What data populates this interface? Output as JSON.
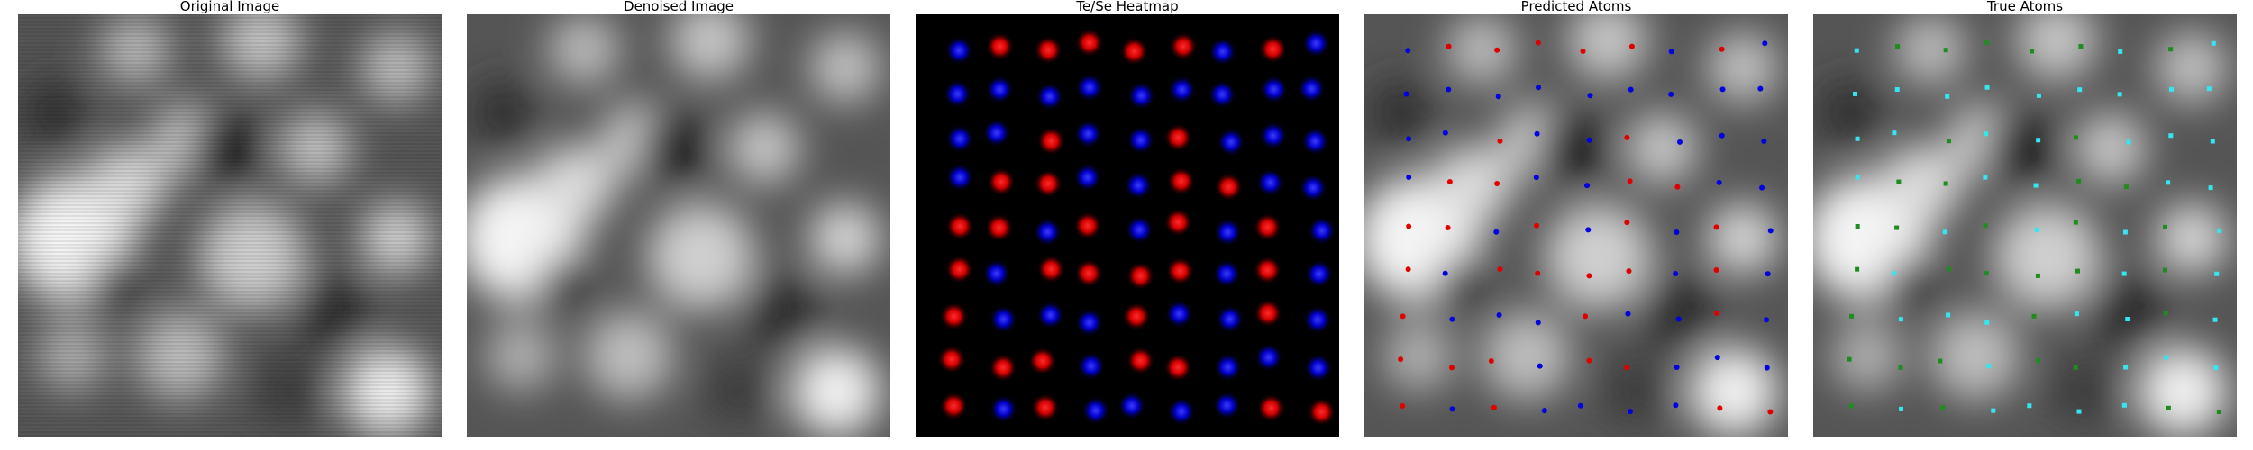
{
  "panels": [
    {
      "title": "Original Image"
    },
    {
      "title": "Denoised Image"
    },
    {
      "title": "Te/Se Heatmap"
    },
    {
      "title": "Predicted Atoms"
    },
    {
      "title": "True Atoms"
    }
  ],
  "colors": {
    "background": "#ffffff",
    "heatmap_bg": "#000000",
    "te": "#ff1a1a",
    "se": "#1f1fff",
    "pred_red": "#e00000",
    "pred_blue": "#0000e0",
    "true_green": "#1e8c1e",
    "true_cyan": "#33e6f0"
  },
  "atom_grid": {
    "columns": 9,
    "rows": 9,
    "labels": [
      [
        "se",
        "te",
        "te",
        "te",
        "te",
        "te",
        "se",
        "te",
        "se"
      ],
      [
        "se",
        "se",
        "se",
        "se",
        "se",
        "se",
        "se",
        "se",
        "se"
      ],
      [
        "se",
        "se",
        "te",
        "se",
        "se",
        "te",
        "se",
        "se",
        "se"
      ],
      [
        "se",
        "te",
        "te",
        "se",
        "se",
        "te",
        "te",
        "se",
        "se"
      ],
      [
        "te",
        "te",
        "se",
        "te",
        "se",
        "te",
        "se",
        "te",
        "se"
      ],
      [
        "te",
        "se",
        "te",
        "te",
        "te",
        "te",
        "se",
        "te",
        "se"
      ],
      [
        "te",
        "se",
        "se",
        "se",
        "te",
        "se",
        "se",
        "te",
        "se"
      ],
      [
        "te",
        "te",
        "te",
        "se",
        "te",
        "te",
        "se",
        "se",
        "se"
      ],
      [
        "te",
        "se",
        "te",
        "se",
        "se",
        "se",
        "se",
        "te",
        "te"
      ]
    ]
  }
}
